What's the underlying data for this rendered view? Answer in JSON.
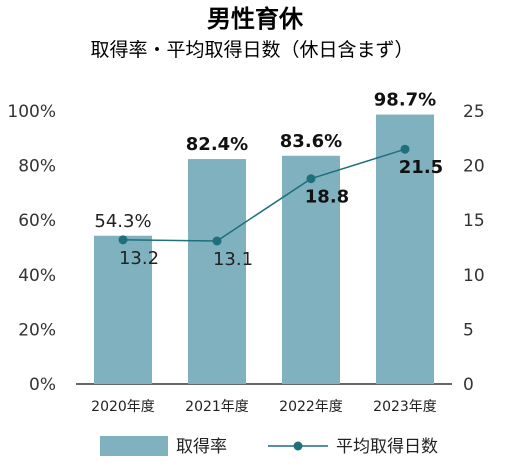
{
  "chart_data": {
    "type": "bar",
    "title": "男性育休",
    "subtitle": "取得率・平均取得日数（休日含まず）",
    "categories": [
      "2020年度",
      "2021年度",
      "2022年度",
      "2023年度"
    ],
    "series": [
      {
        "name": "取得率",
        "type": "bar",
        "axis": "left",
        "values": [
          54.3,
          82.4,
          83.6,
          98.7
        ],
        "labels": [
          "54.3%",
          "82.4%",
          "83.6%",
          "98.7%"
        ],
        "label_bold": [
          false,
          true,
          true,
          true
        ]
      },
      {
        "name": "平均取得日数",
        "type": "line",
        "axis": "right",
        "values": [
          13.2,
          13.1,
          18.8,
          21.5
        ],
        "labels": [
          "13.2",
          "13.1",
          "18.8",
          "21.5"
        ],
        "label_bold": [
          false,
          false,
          true,
          true
        ]
      }
    ],
    "y_left": {
      "min": 0,
      "max": 100,
      "ticks": [
        "0%",
        "20%",
        "40%",
        "60%",
        "80%",
        "100%"
      ]
    },
    "y_right": {
      "min": 0,
      "max": 25,
      "ticks": [
        "0",
        "5",
        "10",
        "15",
        "20",
        "25"
      ]
    },
    "legend_position": "bottom",
    "grid": false
  },
  "colors": {
    "bar": "#7fb2be",
    "line": "#1f6f7c",
    "axis": "#333333"
  }
}
